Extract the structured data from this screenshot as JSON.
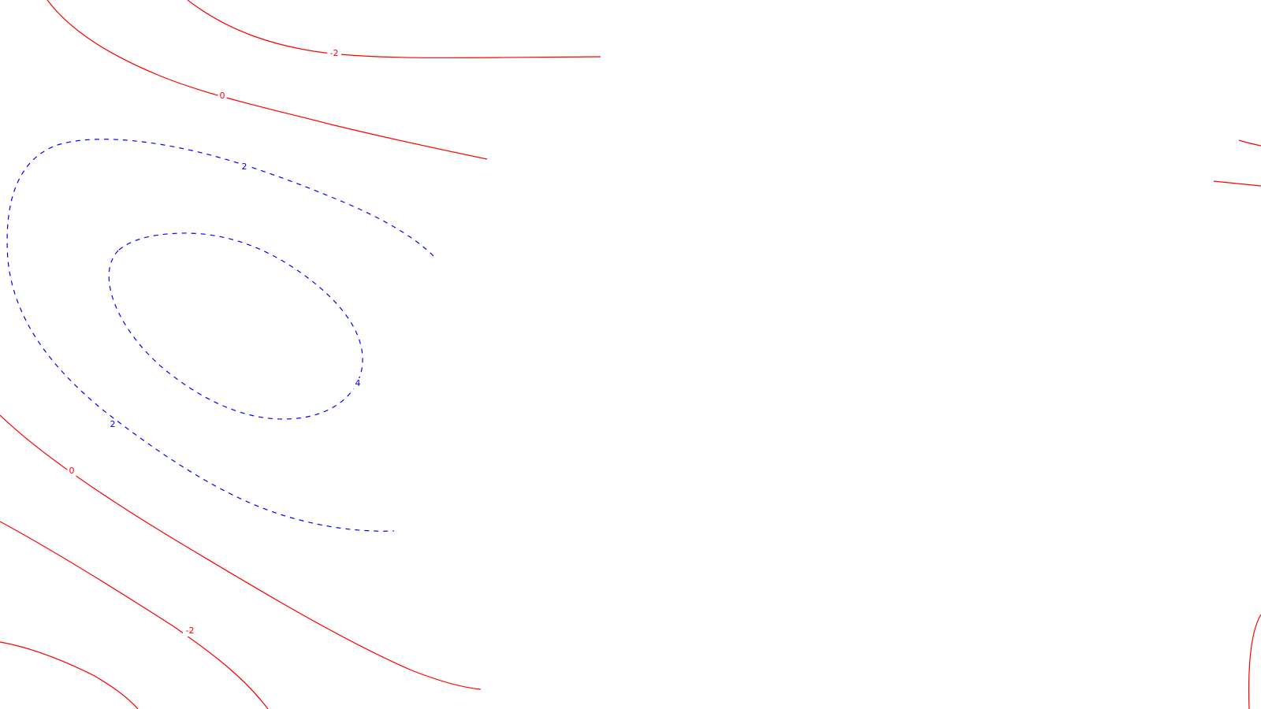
{
  "chart_data": {
    "type": "contour",
    "title": "",
    "xlabel": "",
    "ylabel": "",
    "legend": false,
    "grid": false,
    "styles": {
      "positive": {
        "color": "#0000ff",
        "dash": "6,6"
      },
      "nonpositive": {
        "color": "#ff0000",
        "dash": ""
      }
    },
    "contour_levels": [
      {
        "level": 4,
        "label": "4",
        "sign": "positive"
      },
      {
        "level": 2,
        "label": "2",
        "sign": "positive"
      },
      {
        "level": 0,
        "label": "0",
        "sign": "nonpositive"
      },
      {
        "level": -2,
        "label": "-2",
        "sign": "nonpositive"
      }
    ]
  }
}
